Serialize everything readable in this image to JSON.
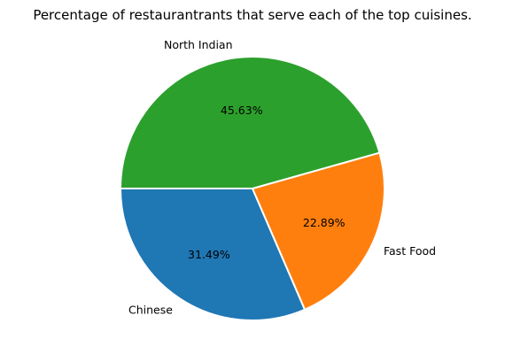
{
  "chart_data": {
    "type": "pie",
    "title": "Percentage of restaurantrants that serve each of the top cuisines.",
    "start_angle_deg": 180,
    "direction": "counterclockwise",
    "slices": [
      {
        "label": "Chinese",
        "value": 31.49,
        "display": "31.49%",
        "color": "#1f77b4"
      },
      {
        "label": "Fast Food",
        "value": 22.89,
        "display": "22.89%",
        "color": "#ff7f0e"
      },
      {
        "label": "North Indian",
        "value": 45.63,
        "display": "45.63%",
        "color": "#2ca02c"
      }
    ],
    "edge_color": "#ffffff"
  }
}
